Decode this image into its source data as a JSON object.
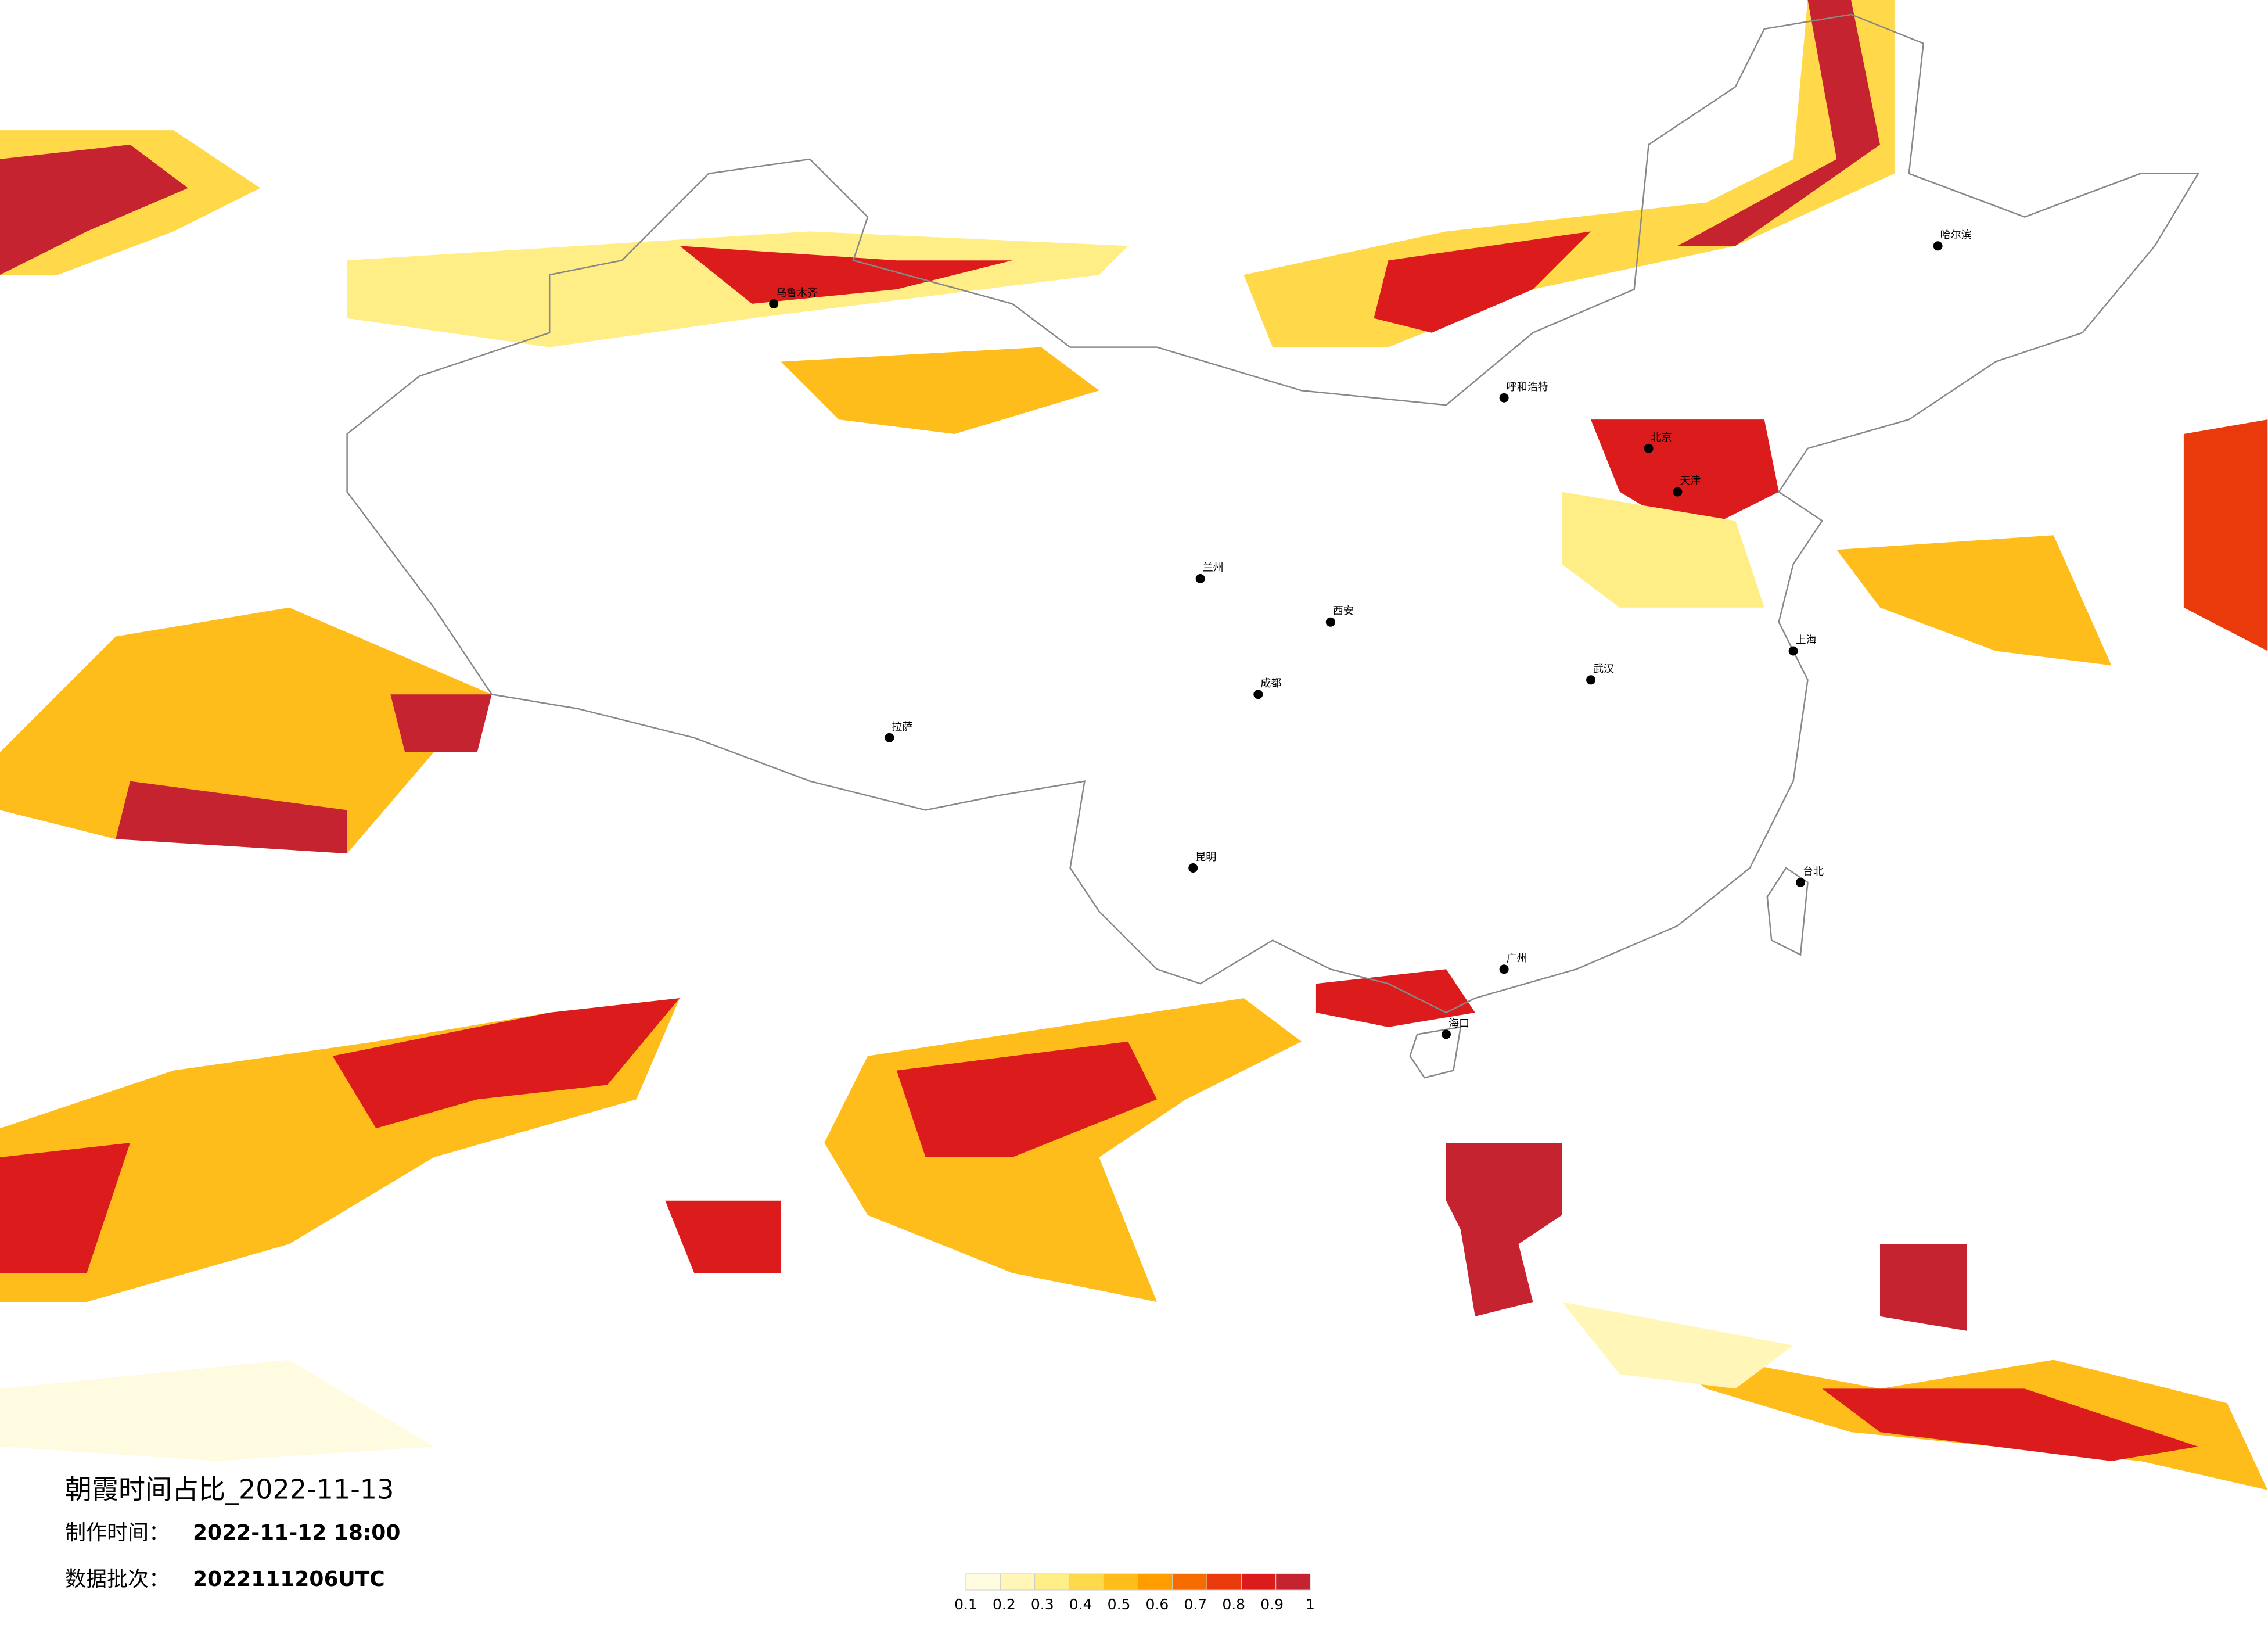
{
  "title": "朝霞时间占比_2022-11-13",
  "made_label": "制作时间：",
  "made_time": "2022-11-12 18:00",
  "batch_label": "数据批次：",
  "batch": "2022111206UTC",
  "colorbar": {
    "ticks": [
      0.1,
      0.2,
      0.3,
      0.4,
      0.5,
      0.6,
      0.7,
      0.8,
      0.9,
      1
    ],
    "colors": [
      "#fffbe0",
      "#fff6b8",
      "#ffee85",
      "#ffd94a",
      "#ffbd1c",
      "#ff9c00",
      "#f76c00",
      "#ea3a0c",
      "#dc1c1c",
      "#c4232f"
    ]
  },
  "cities": [
    "北京",
    "天津",
    "上海",
    "广州",
    "武汉",
    "成都",
    "西安",
    "哈尔滨",
    "乌鲁木齐",
    "拉萨",
    "昆明",
    "兰州",
    "呼和浩特",
    "台北",
    "海口"
  ]
}
